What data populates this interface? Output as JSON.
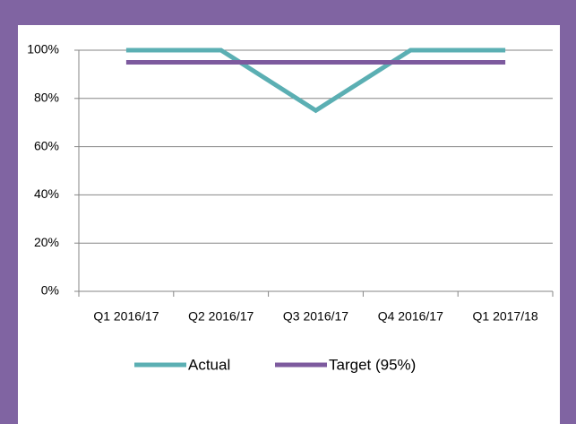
{
  "chart_data": {
    "type": "line",
    "categories": [
      "Q1 2016/17",
      "Q2 2016/17",
      "Q3 2016/17",
      "Q4 2016/17",
      "Q1 2017/18"
    ],
    "series": [
      {
        "name": "Actual",
        "color": "#5bafb3",
        "values": [
          100,
          100,
          75,
          100,
          100
        ]
      },
      {
        "name": "Target (95%)",
        "color": "#7d5a9e",
        "values": [
          95,
          95,
          95,
          95,
          95
        ]
      }
    ],
    "ylim": [
      0,
      100
    ],
    "yticks": [
      {
        "value": 0,
        "label": "0%"
      },
      {
        "value": 20,
        "label": "20%"
      },
      {
        "value": 40,
        "label": "40%"
      },
      {
        "value": 60,
        "label": "60%"
      },
      {
        "value": 80,
        "label": "80%"
      },
      {
        "value": 100,
        "label": "100%"
      }
    ],
    "grid": true
  }
}
